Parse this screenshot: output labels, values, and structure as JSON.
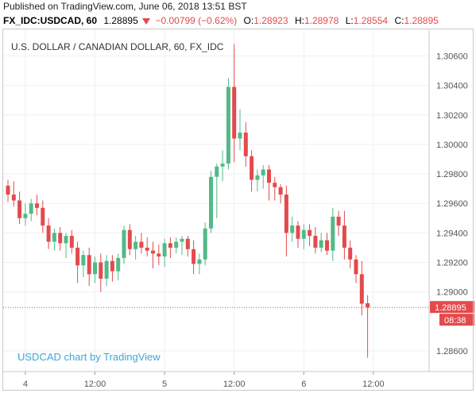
{
  "header": {
    "published": "Published on TradingView.com, June 06, 2018 13:51 BST",
    "symbol": "FX_IDC:USDCAD, 60",
    "last": "1.28895",
    "change": "−0.00799 (−0.62%)",
    "open_label": "O:",
    "open": "1.28923",
    "high_label": "H:",
    "high": "1.28978",
    "low_label": "L:",
    "low": "1.28554",
    "close_label": "C:",
    "close": "1.28895",
    "colors": {
      "down": "#e34a4d",
      "up": "#53b987"
    }
  },
  "chart_data": {
    "type": "candlestick",
    "title": "U.S. DOLLAR / CANADIAN DOLLAR, 60, FX_IDC",
    "watermark": "USDCAD chart by TradingView",
    "y_ticks": [
      "1.30600",
      "1.30400",
      "1.30200",
      "1.30000",
      "1.29800",
      "1.29600",
      "1.29400",
      "1.29200",
      "1.29000",
      "1.28600"
    ],
    "ylim": [
      1.2846,
      1.3078
    ],
    "x_ticks": [
      {
        "label": "4",
        "index": 3
      },
      {
        "label": "12:00",
        "index": 15
      },
      {
        "label": "5",
        "index": 27
      },
      {
        "label": "12:00",
        "index": 39
      },
      {
        "label": "6",
        "index": 51
      },
      {
        "label": "12:00",
        "index": 63
      }
    ],
    "candle_count": 66,
    "last_price": {
      "value": 1.28895,
      "label": "1.28895",
      "countdown": "08:38",
      "color": "#e34a4d"
    },
    "candles": [
      [
        1.2972,
        1.2976,
        1.2961,
        1.2966
      ],
      [
        1.2966,
        1.2975,
        1.2958,
        1.2962
      ],
      [
        1.2962,
        1.2968,
        1.2946,
        1.295
      ],
      [
        1.295,
        1.296,
        1.2945,
        1.2953
      ],
      [
        1.2953,
        1.2963,
        1.2948,
        1.296
      ],
      [
        1.296,
        1.2966,
        1.2952,
        1.2957
      ],
      [
        1.2957,
        1.2962,
        1.294,
        1.2945
      ],
      [
        1.2945,
        1.295,
        1.2929,
        1.2934
      ],
      [
        1.2934,
        1.2943,
        1.2928,
        1.294
      ],
      [
        1.294,
        1.2944,
        1.2928,
        1.2933
      ],
      [
        1.2933,
        1.294,
        1.2923,
        1.2938
      ],
      [
        1.2938,
        1.2942,
        1.2926,
        1.293
      ],
      [
        1.293,
        1.2934,
        1.2906,
        1.2918
      ],
      [
        1.2918,
        1.2928,
        1.291,
        1.2925
      ],
      [
        1.2925,
        1.293,
        1.2904,
        1.2912
      ],
      [
        1.2912,
        1.2924,
        1.2906,
        1.292
      ],
      [
        1.292,
        1.2926,
        1.29,
        1.2909
      ],
      [
        1.2909,
        1.2925,
        1.2904,
        1.2921
      ],
      [
        1.2921,
        1.2925,
        1.2907,
        1.2914
      ],
      [
        1.2914,
        1.2926,
        1.2908,
        1.2923
      ],
      [
        1.2923,
        1.2945,
        1.2919,
        1.2942
      ],
      [
        1.2942,
        1.2946,
        1.2925,
        1.2929
      ],
      [
        1.2929,
        1.2938,
        1.2922,
        1.2934
      ],
      [
        1.2934,
        1.294,
        1.2926,
        1.293
      ],
      [
        1.293,
        1.2937,
        1.2924,
        1.2928
      ],
      [
        1.2928,
        1.2934,
        1.2916,
        1.2926
      ],
      [
        1.2926,
        1.2932,
        1.2918,
        1.2924
      ],
      [
        1.2924,
        1.2936,
        1.2917,
        1.2933
      ],
      [
        1.2933,
        1.2937,
        1.2923,
        1.293
      ],
      [
        1.293,
        1.2937,
        1.2926,
        1.2934
      ],
      [
        1.2934,
        1.2938,
        1.2925,
        1.2936
      ],
      [
        1.2936,
        1.2938,
        1.2924,
        1.2929
      ],
      [
        1.2929,
        1.2935,
        1.2912,
        1.2919
      ],
      [
        1.2919,
        1.2926,
        1.2912,
        1.2922
      ],
      [
        1.2922,
        1.2947,
        1.2918,
        1.2943
      ],
      [
        1.2943,
        1.2982,
        1.294,
        1.2978
      ],
      [
        1.2978,
        1.2987,
        1.295,
        1.2985
      ],
      [
        1.2985,
        1.2996,
        1.2975,
        1.2987
      ],
      [
        1.2987,
        1.3045,
        1.2983,
        1.3039
      ],
      [
        1.3039,
        1.3068,
        1.2988,
        1.3004
      ],
      [
        1.3004,
        1.3024,
        1.2996,
        1.3008
      ],
      [
        1.3008,
        1.3015,
        1.2985,
        1.2992
      ],
      [
        1.2992,
        1.2996,
        1.2968,
        1.2976
      ],
      [
        1.2976,
        1.2983,
        1.2968,
        1.2979
      ],
      [
        1.2979,
        1.2986,
        1.297,
        1.2983
      ],
      [
        1.2983,
        1.2986,
        1.2962,
        1.2974
      ],
      [
        1.2974,
        1.2978,
        1.2962,
        1.2971
      ],
      [
        1.2971,
        1.2973,
        1.296,
        1.2966
      ],
      [
        1.2966,
        1.2972,
        1.2924,
        1.294
      ],
      [
        1.294,
        1.2951,
        1.2934,
        1.2945
      ],
      [
        1.2945,
        1.2948,
        1.293,
        1.2936
      ],
      [
        1.2936,
        1.2946,
        1.2929,
        1.2942
      ],
      [
        1.2942,
        1.2946,
        1.2931,
        1.2938
      ],
      [
        1.2938,
        1.2944,
        1.2926,
        1.293
      ],
      [
        1.293,
        1.294,
        1.2927,
        1.2935
      ],
      [
        1.2935,
        1.294,
        1.2925,
        1.2928
      ],
      [
        1.2928,
        1.2957,
        1.2921,
        1.2951
      ],
      [
        1.2951,
        1.2955,
        1.2938,
        1.2945
      ],
      [
        1.2945,
        1.2955,
        1.2922,
        1.293
      ],
      [
        1.293,
        1.2935,
        1.2916,
        1.2922
      ],
      [
        1.2922,
        1.2925,
        1.2906,
        1.2912
      ],
      [
        1.2912,
        1.2921,
        1.2884,
        1.2892
      ],
      [
        1.28923,
        1.28978,
        1.28554,
        1.28895
      ]
    ],
    "colors": {
      "up": "#53b987",
      "down": "#e34a4d",
      "grid": "#eef0f3",
      "axis_text": "#555555",
      "watermark": "#3fa6d6"
    }
  }
}
